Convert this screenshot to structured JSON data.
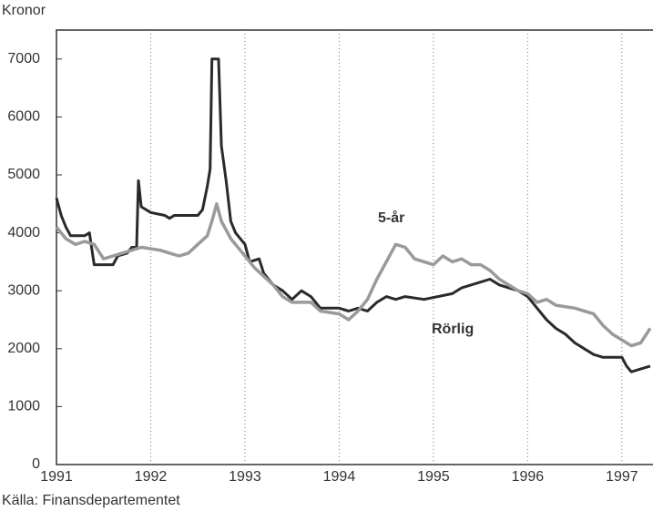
{
  "chart_data": {
    "type": "line",
    "y_label": "Kronor",
    "source": "Källa: Finansdepartementet",
    "xlim": [
      1991,
      1997.33
    ],
    "xticks": [
      1991,
      1992,
      1993,
      1994,
      1995,
      1996,
      1997
    ],
    "ylim": [
      0,
      7500
    ],
    "yticks": [
      0,
      1000,
      2000,
      3000,
      4000,
      5000,
      6000,
      7000
    ],
    "grid": true,
    "series": [
      {
        "name": "Rörlig",
        "color": "#2a2a2a",
        "x": [
          1991.0,
          1991.05,
          1991.1,
          1991.15,
          1991.3,
          1991.35,
          1991.4,
          1991.6,
          1991.65,
          1991.75,
          1991.8,
          1991.85,
          1991.87,
          1991.9,
          1992.0,
          1992.15,
          1992.2,
          1992.25,
          1992.5,
          1992.55,
          1992.6,
          1992.63,
          1992.65,
          1992.72,
          1992.75,
          1992.8,
          1992.85,
          1992.9,
          1993.0,
          1993.05,
          1993.15,
          1993.2,
          1993.3,
          1993.4,
          1993.5,
          1993.6,
          1993.7,
          1993.8,
          1994.0,
          1994.1,
          1994.2,
          1994.3,
          1994.4,
          1994.5,
          1994.6,
          1994.7,
          1994.9,
          1995.2,
          1995.3,
          1995.5,
          1995.6,
          1995.7,
          1995.9,
          1996.0,
          1996.1,
          1996.2,
          1996.3,
          1996.4,
          1996.5,
          1996.6,
          1996.7,
          1996.8,
          1997.0,
          1997.05,
          1997.1,
          1997.2,
          1997.3
        ],
        "values": [
          4600,
          4300,
          4100,
          3950,
          3950,
          4000,
          3450,
          3450,
          3600,
          3650,
          3750,
          3750,
          4900,
          4450,
          4350,
          4300,
          4250,
          4300,
          4300,
          4400,
          4800,
          5100,
          7000,
          7000,
          5500,
          4900,
          4200,
          4000,
          3800,
          3500,
          3550,
          3300,
          3100,
          3000,
          2850,
          3000,
          2900,
          2700,
          2700,
          2650,
          2700,
          2650,
          2800,
          2900,
          2850,
          2900,
          2850,
          2950,
          3050,
          3150,
          3200,
          3100,
          3000,
          2900,
          2700,
          2500,
          2350,
          2250,
          2100,
          2000,
          1900,
          1850,
          1850,
          1700,
          1600,
          1650,
          1700
        ]
      },
      {
        "name": "5-år",
        "color": "#9a9a9a",
        "x": [
          1991.0,
          1991.1,
          1991.2,
          1991.3,
          1991.4,
          1991.5,
          1991.6,
          1991.7,
          1991.8,
          1991.9,
          1992.1,
          1992.2,
          1992.3,
          1992.4,
          1992.5,
          1992.6,
          1992.65,
          1992.7,
          1992.75,
          1992.85,
          1992.95,
          1993.1,
          1993.2,
          1993.3,
          1993.4,
          1993.5,
          1993.7,
          1993.8,
          1994.0,
          1994.1,
          1994.2,
          1994.3,
          1994.4,
          1994.5,
          1994.6,
          1994.7,
          1994.8,
          1995.0,
          1995.1,
          1995.2,
          1995.3,
          1995.4,
          1995.5,
          1995.6,
          1995.7,
          1995.9,
          1996.0,
          1996.1,
          1996.2,
          1996.3,
          1996.5,
          1996.7,
          1996.8,
          1996.9,
          1997.0,
          1997.1,
          1997.2,
          1997.3
        ],
        "values": [
          4100,
          3900,
          3800,
          3850,
          3800,
          3550,
          3600,
          3650,
          3700,
          3750,
          3700,
          3650,
          3600,
          3650,
          3800,
          3950,
          4200,
          4500,
          4200,
          3900,
          3700,
          3400,
          3250,
          3100,
          2900,
          2800,
          2800,
          2650,
          2600,
          2500,
          2650,
          2850,
          3200,
          3500,
          3800,
          3750,
          3550,
          3450,
          3600,
          3500,
          3550,
          3450,
          3450,
          3350,
          3200,
          3000,
          2950,
          2800,
          2850,
          2750,
          2700,
          2600,
          2400,
          2250,
          2150,
          2050,
          2100,
          2350
        ]
      }
    ]
  }
}
